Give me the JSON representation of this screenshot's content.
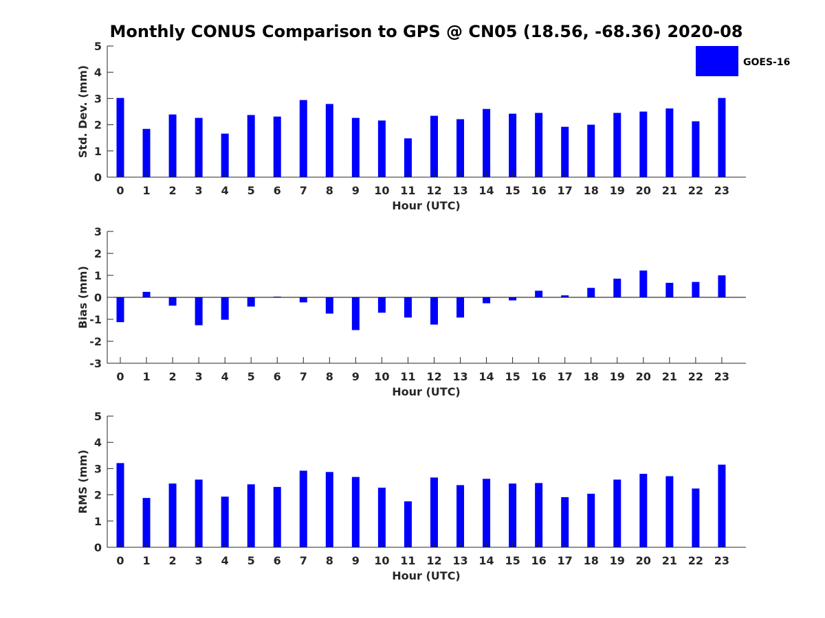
{
  "chart_data": [
    {
      "type": "bar",
      "title": "Monthly CONUS Comparison to GPS @ CN05 (18.56, -68.36) 2020-08",
      "xlabel": "Hour (UTC)",
      "ylabel": "Std. Dev. (mm)",
      "ylim": [
        0,
        5
      ],
      "yticks": [
        0,
        1,
        2,
        3,
        4,
        5
      ],
      "categories": [
        "0",
        "1",
        "2",
        "3",
        "4",
        "5",
        "6",
        "7",
        "8",
        "9",
        "10",
        "11",
        "12",
        "13",
        "14",
        "15",
        "16",
        "17",
        "18",
        "19",
        "20",
        "21",
        "22",
        "23"
      ],
      "series": [
        {
          "name": "GOES-16",
          "values": [
            3.02,
            1.84,
            2.39,
            2.26,
            1.66,
            2.37,
            2.31,
            2.94,
            2.79,
            2.26,
            2.16,
            1.48,
            2.34,
            2.21,
            2.6,
            2.42,
            2.45,
            1.92,
            2.0,
            2.45,
            2.5,
            2.62,
            2.13,
            3.02
          ]
        }
      ],
      "legend": {
        "position": "top-right",
        "entries": [
          "GOES-16"
        ]
      }
    },
    {
      "type": "bar",
      "xlabel": "Hour (UTC)",
      "ylabel": "Bias (mm)",
      "ylim": [
        -3,
        3
      ],
      "yticks": [
        -3,
        -2,
        -1,
        0,
        1,
        2,
        3
      ],
      "categories": [
        "0",
        "1",
        "2",
        "3",
        "4",
        "5",
        "6",
        "7",
        "8",
        "9",
        "10",
        "11",
        "12",
        "13",
        "14",
        "15",
        "16",
        "17",
        "18",
        "19",
        "20",
        "21",
        "22",
        "23"
      ],
      "series": [
        {
          "name": "GOES-16",
          "values": [
            -1.13,
            0.25,
            -0.38,
            -1.27,
            -1.02,
            -0.42,
            0.03,
            -0.23,
            -0.74,
            -1.49,
            -0.7,
            -0.92,
            -1.24,
            -0.92,
            -0.27,
            -0.14,
            0.3,
            0.09,
            0.43,
            0.85,
            1.22,
            0.66,
            0.7,
            1.0
          ]
        }
      ]
    },
    {
      "type": "bar",
      "xlabel": "Hour (UTC)",
      "ylabel": "RMS (mm)",
      "ylim": [
        0,
        5
      ],
      "yticks": [
        0,
        1,
        2,
        3,
        4,
        5
      ],
      "categories": [
        "0",
        "1",
        "2",
        "3",
        "4",
        "5",
        "6",
        "7",
        "8",
        "9",
        "10",
        "11",
        "12",
        "13",
        "14",
        "15",
        "16",
        "17",
        "18",
        "19",
        "20",
        "21",
        "22",
        "23"
      ],
      "series": [
        {
          "name": "GOES-16",
          "values": [
            3.21,
            1.88,
            2.43,
            2.58,
            1.93,
            2.4,
            2.3,
            2.92,
            2.87,
            2.68,
            2.27,
            1.75,
            2.66,
            2.37,
            2.61,
            2.43,
            2.45,
            1.91,
            2.04,
            2.58,
            2.8,
            2.71,
            2.24,
            3.15
          ]
        }
      ]
    }
  ],
  "colors": {
    "bar": "#0000ff",
    "axis": "#262626",
    "title": "#000000"
  }
}
